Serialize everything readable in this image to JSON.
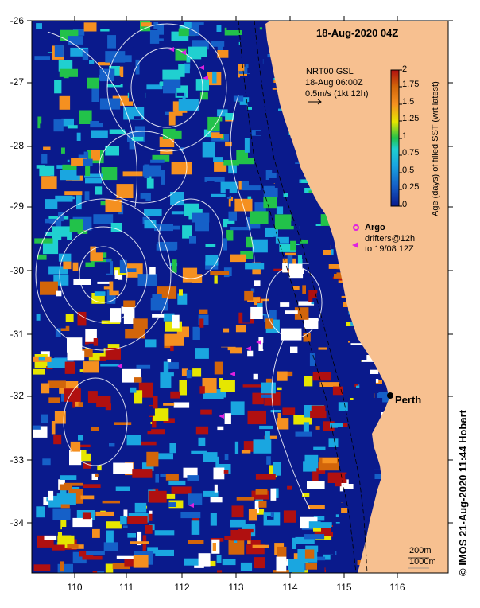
{
  "title": "18-Aug-2020 04Z",
  "current_legend": {
    "line1": "NRT00 GSL",
    "line2": "18-Aug 06:00Z",
    "line3": "0.5m/s (1kt 12h)"
  },
  "argo_legend": {
    "argo_label": "Argo",
    "drifters_line1": "drifters@12h",
    "drifters_line2": "to 19/08 12Z"
  },
  "colorbar": {
    "title": "Age (days) of filled SST (wrt latest)",
    "ticks": [
      "2",
      "1.75",
      "1.5",
      "1.25",
      "1",
      "0.75",
      "0.5",
      "0.25",
      "0"
    ]
  },
  "axes": {
    "y_ticks": [
      "-26",
      "-27",
      "-28",
      "-29",
      "-30",
      "-31",
      "-32",
      "-33",
      "-34"
    ],
    "x_ticks": [
      "110",
      "111",
      "112",
      "113",
      "114",
      "115",
      "116"
    ]
  },
  "places": {
    "perth": "Perth"
  },
  "depth_legend": {
    "line1": "200m",
    "line2": "1000m"
  },
  "credit": "© IMOS 21-Aug-2020 11:44 Hobart",
  "colors": {
    "land": "#f7c090",
    "deep_blue": "#0a1a8c",
    "mid_blue": "#1560c8",
    "light_blue": "#1aa6e0",
    "cyan": "#20d0d0",
    "green": "#22c24a",
    "yellow": "#e6e600",
    "orange": "#f59020",
    "dark_orange": "#d2650a",
    "red": "#b01010",
    "white": "#ffffff",
    "argo": "#e020e0"
  }
}
